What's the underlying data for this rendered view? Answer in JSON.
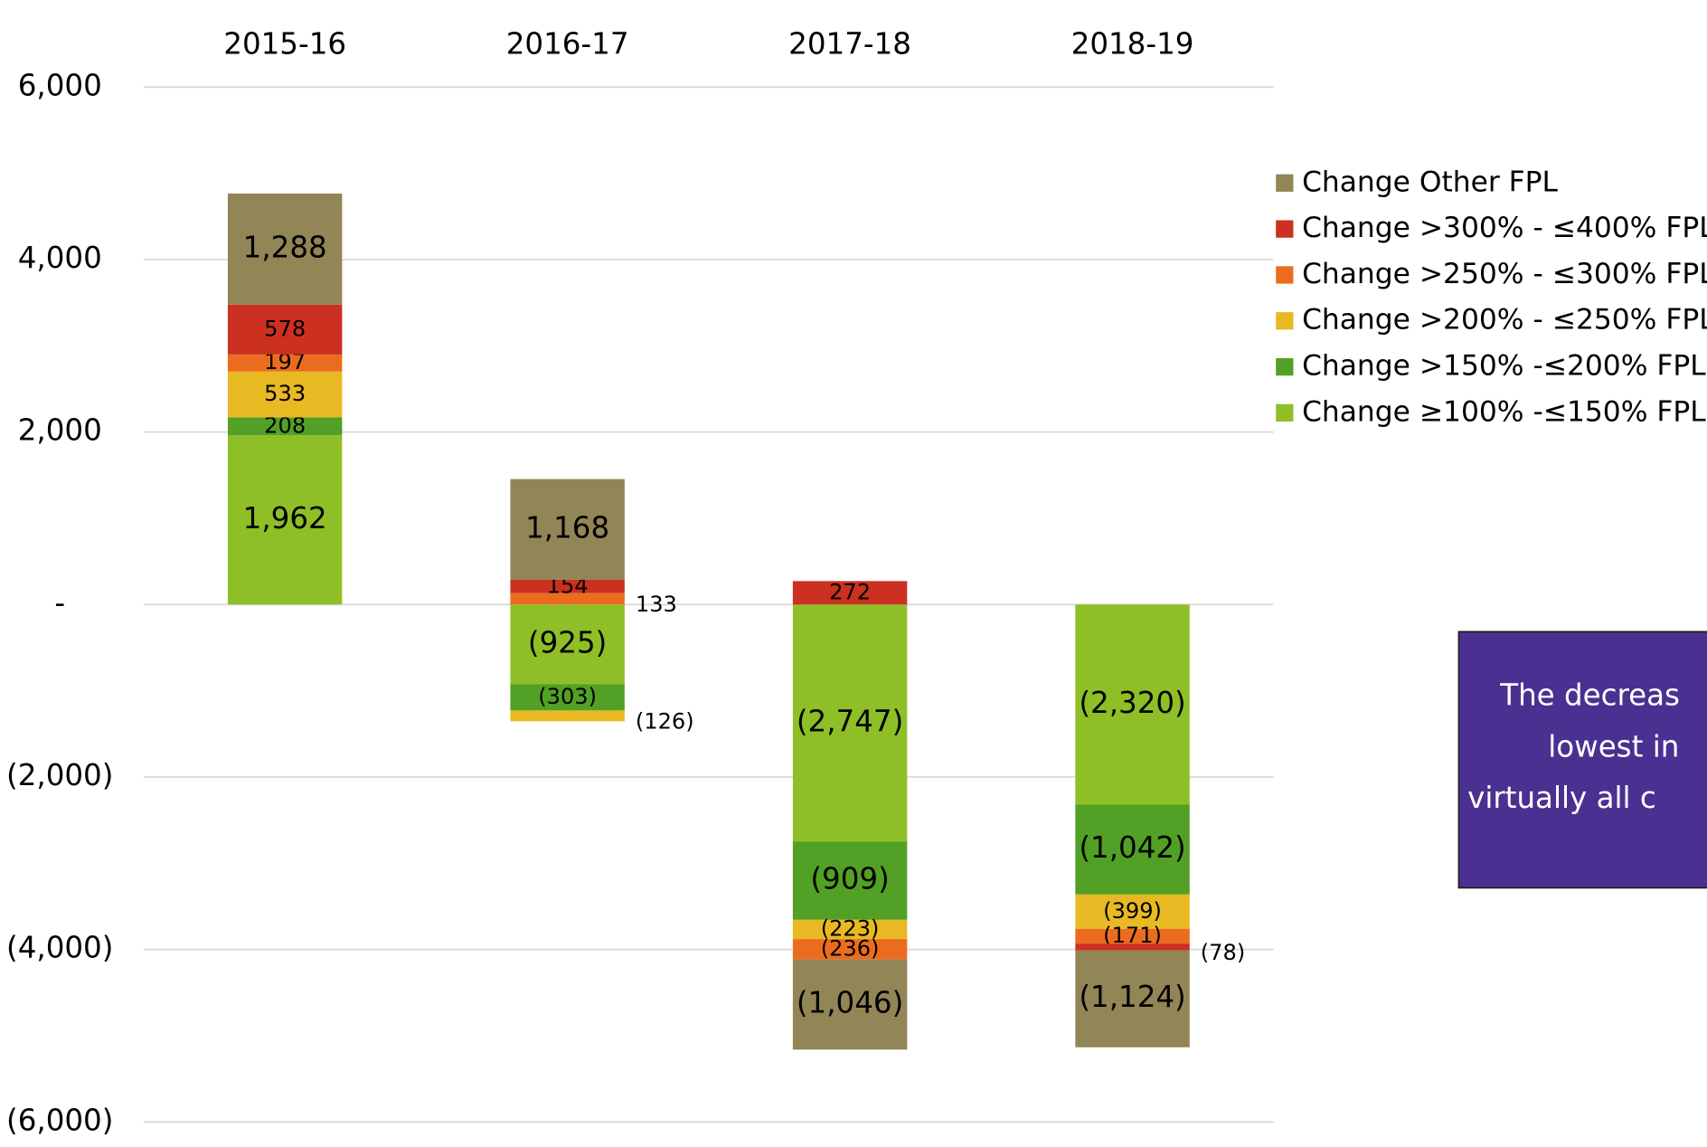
{
  "chart_data": {
    "type": "bar",
    "stacked": true,
    "categories": [
      "2015-16",
      "2016-17",
      "2017-18",
      "2018-19"
    ],
    "series": [
      {
        "name": "Change ≥100% -≤150% FPL",
        "color": "#8fbf26",
        "values": [
          1962,
          -925,
          -2747,
          -2320
        ],
        "value_labels": [
          "1,962",
          "(925)",
          "(2,747)",
          "(2,320)"
        ]
      },
      {
        "name": "Change >150% -≤200% FPL",
        "color": "#52a025",
        "values": [
          208,
          -303,
          -909,
          -1042
        ],
        "value_labels": [
          "208",
          "(303)",
          "(909)",
          "(1,042)"
        ]
      },
      {
        "name": "Change >200% - ≤250% FPL",
        "color": "#e8b922",
        "values": [
          533,
          -126,
          -223,
          -399
        ],
        "value_labels": [
          "533",
          "(126)",
          "(223)",
          "(399)"
        ]
      },
      {
        "name": "Change >250% - ≤300% FPL",
        "color": "#ec6c1f",
        "values": [
          197,
          133,
          -236,
          -171
        ],
        "value_labels": [
          "197",
          "133",
          "(236)",
          "(171)"
        ]
      },
      {
        "name": "Change >300% - ≤400% FPL",
        "color": "#cc3020",
        "values": [
          578,
          154,
          272,
          -78
        ],
        "value_labels": [
          "578",
          "154",
          "272",
          "(78)"
        ]
      },
      {
        "name": "Change Other FPL",
        "color": "#928556",
        "values": [
          1288,
          1168,
          -1046,
          -1124
        ],
        "value_labels": [
          "1,288",
          "1,168",
          "(1,046)",
          "(1,124)"
        ]
      }
    ],
    "ylim": [
      -6000,
      6000
    ],
    "yticks": [
      {
        "value": -6000,
        "label": "(6,000)"
      },
      {
        "value": -4000,
        "label": "(4,000)"
      },
      {
        "value": -2000,
        "label": "(2,000)"
      },
      {
        "value": 0,
        "label": "-"
      },
      {
        "value": 2000,
        "label": "2,000"
      },
      {
        "value": 4000,
        "label": "4,000"
      },
      {
        "value": 6000,
        "label": "6,000"
      }
    ],
    "grid": true,
    "legend": "right",
    "annotation": {
      "lines": [
        "The decreas",
        "lowest in",
        "virtually all c"
      ],
      "color": "#4a3191"
    }
  }
}
